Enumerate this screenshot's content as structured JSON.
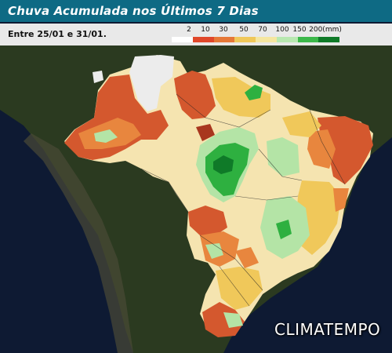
{
  "title": "Chuva Acumulada nos Últimos 7 Dias",
  "period": "Entre 25/01 e 31/01.",
  "legend": {
    "labels": [
      "2",
      "10",
      "30",
      "50",
      "70",
      "100",
      "150",
      "200(mm)"
    ],
    "colors": [
      "#ffffff",
      "#e0472a",
      "#e67838",
      "#f0c85a",
      "#f5e6a0",
      "#b8e8b0",
      "#3cb84a",
      "#0f7a28"
    ]
  },
  "map": {
    "ocean_color": "#0e1a33",
    "land_color": "#2b3a20",
    "rain_colors": {
      "none": "#ececec",
      "light": "#d4582e",
      "orange": "#e8863e",
      "yellow": "#f0c85a",
      "cream": "#f5e4b0",
      "lightgreen": "#b4e4a6",
      "green": "#2eb040",
      "darkgreen": "#0f7a28",
      "darkred": "#a8361e"
    }
  },
  "logo": "CLIMATEMPO"
}
